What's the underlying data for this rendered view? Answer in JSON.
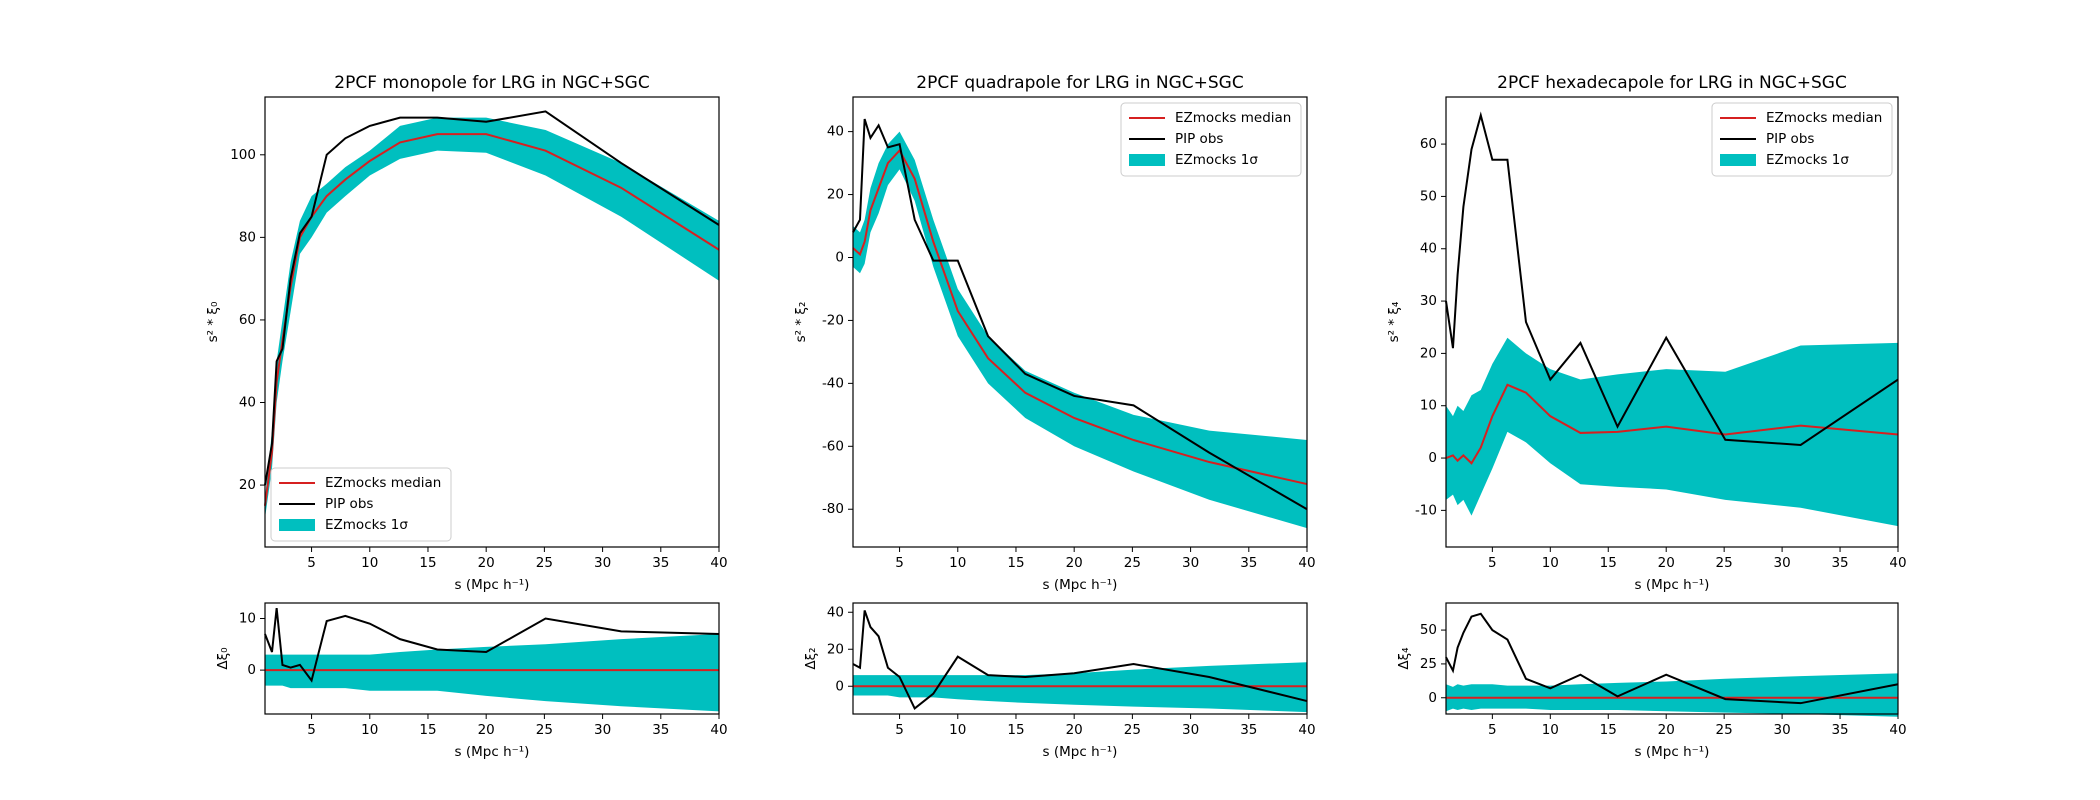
{
  "chart_data": [
    {
      "type": "line",
      "title": "2PCF monopole for LRG in NGC+SGC",
      "xlabel": "s (Mpc h⁻¹)",
      "ylabel": "s² * ξ₀",
      "x": [
        1,
        1.6,
        2,
        2.5,
        3.2,
        4,
        5,
        6.3,
        7.9,
        10,
        12.6,
        15.8,
        20,
        25.1,
        31.6,
        40
      ],
      "xlim": [
        1,
        40
      ],
      "xticks": [
        5,
        10,
        15,
        20,
        25,
        30,
        35,
        40
      ],
      "ylim": [
        5,
        114
      ],
      "yticks": [
        20,
        40,
        60,
        80,
        100
      ],
      "legend": "lower left",
      "series": [
        {
          "name": "EZmocks median",
          "color": "#d62020",
          "values": [
            15,
            28,
            45,
            55,
            68,
            80,
            85,
            90,
            94,
            98.5,
            103,
            105,
            105,
            101,
            92,
            77
          ]
        },
        {
          "name": "PIP obs",
          "color": "#000000",
          "values": [
            20,
            30,
            50,
            53,
            70,
            81,
            85,
            100,
            104,
            107,
            109,
            109,
            108,
            110.5,
            98,
            83
          ]
        },
        {
          "name": "EZmocks 1σ",
          "color": "#00bfbf",
          "lower": [
            12,
            24,
            40,
            50,
            62,
            76,
            80,
            86,
            90,
            95,
            99,
            101,
            100.5,
            95,
            85,
            69.5
          ],
          "upper": [
            17,
            33,
            50,
            60,
            74,
            84,
            90,
            93,
            97,
            101,
            107,
            109,
            109,
            106,
            98,
            84
          ]
        }
      ]
    },
    {
      "type": "line",
      "title": "2PCF quadrapole for LRG in NGC+SGC",
      "xlabel": "s (Mpc h⁻¹)",
      "ylabel": "s² * ξ₂",
      "x": [
        1,
        1.6,
        2,
        2.5,
        3.2,
        4,
        5,
        6.3,
        7.9,
        10,
        12.6,
        15.8,
        20,
        25.1,
        31.6,
        40
      ],
      "xlim": [
        1,
        40
      ],
      "xticks": [
        5,
        10,
        15,
        20,
        25,
        30,
        35,
        40
      ],
      "ylim": [
        -92,
        51
      ],
      "yticks": [
        -80,
        -60,
        -40,
        -20,
        0,
        20,
        40
      ],
      "legend": "upper right",
      "series": [
        {
          "name": "EZmocks median",
          "color": "#d62020",
          "values": [
            3,
            1,
            5,
            15,
            22,
            30,
            34,
            25,
            5,
            -17,
            -32,
            -43,
            -51,
            -58,
            -65,
            -72
          ]
        },
        {
          "name": "PIP obs",
          "color": "#000000",
          "values": [
            8,
            12,
            44,
            38,
            42,
            35,
            36,
            12,
            -1,
            -1,
            -25,
            -37,
            -44,
            -47,
            -62,
            -80
          ]
        },
        {
          "name": "EZmocks 1σ",
          "color": "#00bfbf",
          "lower": [
            -3,
            -5,
            -2,
            8,
            14,
            23,
            28,
            18,
            -3,
            -25,
            -40,
            -51,
            -60,
            -68,
            -77,
            -86
          ],
          "upper": [
            10,
            8,
            12,
            22,
            30,
            36,
            40,
            31,
            12,
            -10,
            -25,
            -36,
            -43,
            -50,
            -55,
            -58
          ]
        }
      ]
    },
    {
      "type": "line",
      "title": "2PCF hexadecapole for LRG in NGC+SGC",
      "xlabel": "s (Mpc h⁻¹)",
      "ylabel": "s² * ξ₄",
      "x": [
        1,
        1.6,
        2,
        2.5,
        3.2,
        4,
        5,
        6.3,
        7.9,
        10,
        12.6,
        15.8,
        20,
        25.1,
        31.6,
        40
      ],
      "xlim": [
        1,
        40
      ],
      "xticks": [
        5,
        10,
        15,
        20,
        25,
        30,
        35,
        40
      ],
      "ylim": [
        -17,
        69
      ],
      "yticks": [
        -10,
        0,
        10,
        20,
        30,
        40,
        50,
        60
      ],
      "legend": "upper right",
      "series": [
        {
          "name": "EZmocks median",
          "color": "#d62020",
          "values": [
            0,
            0.5,
            -0.5,
            0.5,
            -1,
            2,
            8,
            14,
            12.5,
            8,
            4.8,
            5,
            6,
            4.5,
            6.2,
            4.5
          ]
        },
        {
          "name": "PIP obs",
          "color": "#000000",
          "values": [
            30,
            21,
            35,
            48,
            59,
            65.5,
            57,
            57,
            26,
            15,
            22,
            6,
            23,
            3.5,
            2.5,
            15
          ]
        },
        {
          "name": "EZmocks 1σ",
          "color": "#00bfbf",
          "lower": [
            -8,
            -7,
            -9,
            -8,
            -11,
            -7,
            -2,
            5,
            3,
            -1,
            -5,
            -5.5,
            -6,
            -8,
            -9.5,
            -13
          ],
          "upper": [
            10,
            8,
            10,
            9,
            12,
            13,
            18,
            23,
            20,
            17,
            15,
            16,
            17,
            16.5,
            21.5,
            22
          ]
        }
      ]
    },
    {
      "type": "line",
      "xlabel": "s (Mpc h⁻¹)",
      "ylabel": "Δξ₀",
      "x": [
        1,
        1.6,
        2,
        2.5,
        3.2,
        4,
        5,
        6.3,
        7.9,
        10,
        12.6,
        15.8,
        20,
        25.1,
        31.6,
        40
      ],
      "xlim": [
        1,
        40
      ],
      "xticks": [
        5,
        10,
        15,
        20,
        25,
        30,
        35,
        40
      ],
      "ylim": [
        -8.5,
        13
      ],
      "yticks": [
        0,
        10
      ],
      "series": [
        {
          "color": "#d62020",
          "values": [
            0,
            0,
            0,
            0,
            0,
            0,
            0,
            0,
            0,
            0,
            0,
            0,
            0,
            0,
            0,
            0
          ]
        },
        {
          "color": "#000000",
          "values": [
            7,
            3.5,
            12,
            1,
            0.5,
            1,
            -2,
            9.5,
            10.5,
            9,
            6,
            4,
            3.5,
            10,
            7.5,
            7
          ]
        },
        {
          "color": "#00bfbf",
          "lower": [
            -3,
            -3,
            -3,
            -3,
            -3.5,
            -3.5,
            -3.5,
            -3.5,
            -3.5,
            -4,
            -4,
            -4,
            -5,
            -6,
            -7,
            -8
          ],
          "upper": [
            3,
            3,
            3,
            3,
            3,
            3,
            3,
            3,
            3,
            3,
            3.5,
            4,
            4.5,
            5,
            6,
            7
          ]
        }
      ]
    },
    {
      "type": "line",
      "xlabel": "s (Mpc h⁻¹)",
      "ylabel": "Δξ₂",
      "x": [
        1,
        1.6,
        2,
        2.5,
        3.2,
        4,
        5,
        6.3,
        7.9,
        10,
        12.6,
        15.8,
        20,
        25.1,
        31.6,
        40
      ],
      "xlim": [
        1,
        40
      ],
      "xticks": [
        5,
        10,
        15,
        20,
        25,
        30,
        35,
        40
      ],
      "ylim": [
        -15,
        45
      ],
      "yticks": [
        0,
        20,
        40
      ],
      "series": [
        {
          "color": "#d62020",
          "values": [
            0,
            0,
            0,
            0,
            0,
            0,
            0,
            0,
            0,
            0,
            0,
            0,
            0,
            0,
            0,
            0
          ]
        },
        {
          "color": "#000000",
          "values": [
            12,
            10,
            41,
            32,
            27,
            10,
            5,
            -12,
            -4,
            16,
            6,
            5,
            7,
            12,
            5,
            -8
          ]
        },
        {
          "color": "#00bfbf",
          "lower": [
            -5,
            -5,
            -5,
            -5,
            -5,
            -5,
            -6,
            -6,
            -6,
            -7,
            -8,
            -9,
            -10,
            -11,
            -12,
            -14
          ],
          "upper": [
            6,
            6,
            6,
            6,
            6,
            6,
            6,
            6,
            6,
            6,
            6,
            6,
            7,
            9,
            11,
            13
          ]
        }
      ]
    },
    {
      "type": "line",
      "xlabel": "s (Mpc h⁻¹)",
      "ylabel": "Δξ₄",
      "x": [
        1,
        1.6,
        2,
        2.5,
        3.2,
        4,
        5,
        6.3,
        7.9,
        10,
        12.6,
        15.8,
        20,
        25.1,
        31.6,
        40
      ],
      "xlim": [
        1,
        40
      ],
      "xticks": [
        5,
        10,
        15,
        20,
        25,
        30,
        35,
        40
      ],
      "ylim": [
        -12,
        70
      ],
      "yticks": [
        0,
        25,
        50
      ],
      "series": [
        {
          "color": "#d62020",
          "values": [
            0,
            0,
            0,
            0,
            0,
            0,
            0,
            0,
            0,
            0,
            0,
            0,
            0,
            0,
            0,
            0
          ]
        },
        {
          "color": "#000000",
          "values": [
            30,
            20,
            37,
            48,
            60,
            62,
            50,
            43,
            14,
            7,
            17,
            1,
            17,
            -1,
            -4,
            10
          ]
        },
        {
          "color": "#00bfbf",
          "lower": [
            -10,
            -8,
            -9,
            -8,
            -9,
            -8,
            -8,
            -8,
            -8,
            -9,
            -9,
            -9,
            -10,
            -11,
            -12,
            -14
          ],
          "upper": [
            10,
            8,
            10,
            9,
            10,
            10,
            10,
            9,
            9,
            9,
            10,
            11,
            12,
            14,
            16,
            18
          ]
        }
      ]
    }
  ]
}
